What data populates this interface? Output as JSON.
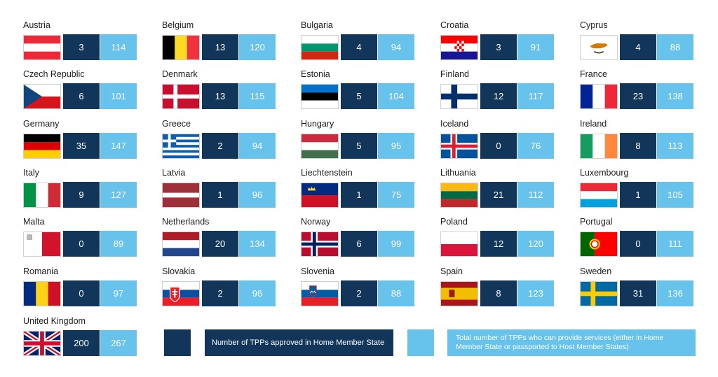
{
  "chart_data": {
    "type": "table",
    "series": [
      {
        "name": "Number of TPPs approved in Home Member State",
        "color": "#12365a"
      },
      {
        "name": "Total number of TPPs who can provide services (either in Home Member State or passported to Host Member States)",
        "color": "#67c2ec"
      }
    ],
    "countries": [
      {
        "name": "Austria",
        "flag": "austria-flag",
        "approved": "3",
        "total": "114"
      },
      {
        "name": "Belgium",
        "flag": "belgium-flag",
        "approved": "13",
        "total": "120"
      },
      {
        "name": "Bulgaria",
        "flag": "bulgaria-flag",
        "approved": "4",
        "total": "94"
      },
      {
        "name": "Croatia",
        "flag": "croatia-flag",
        "approved": "3",
        "total": "91"
      },
      {
        "name": "Cyprus",
        "flag": "cyprus-flag",
        "approved": "4",
        "total": "88"
      },
      {
        "name": "Czech Republic",
        "flag": "czech-republic-flag",
        "approved": "6",
        "total": "101"
      },
      {
        "name": "Denmark",
        "flag": "denmark-flag",
        "approved": "13",
        "total": "115"
      },
      {
        "name": "Estonia",
        "flag": "estonia-flag",
        "approved": "5",
        "total": "104"
      },
      {
        "name": "Finland",
        "flag": "finland-flag",
        "approved": "12",
        "total": "117"
      },
      {
        "name": "France",
        "flag": "france-flag",
        "approved": "23",
        "total": "138"
      },
      {
        "name": "Germany",
        "flag": "germany-flag",
        "approved": "35",
        "total": "147"
      },
      {
        "name": "Greece",
        "flag": "greece-flag",
        "approved": "2",
        "total": "94"
      },
      {
        "name": "Hungary",
        "flag": "hungary-flag",
        "approved": "5",
        "total": "95"
      },
      {
        "name": "Iceland",
        "flag": "iceland-flag",
        "approved": "0",
        "total": "76"
      },
      {
        "name": "Ireland",
        "flag": "ireland-flag",
        "approved": "8",
        "total": "113"
      },
      {
        "name": "Italy",
        "flag": "italy-flag",
        "approved": "9",
        "total": "127"
      },
      {
        "name": "Latvia",
        "flag": "latvia-flag",
        "approved": "1",
        "total": "96"
      },
      {
        "name": "Liechtenstein",
        "flag": "liechtenstein-flag",
        "approved": "1",
        "total": "75"
      },
      {
        "name": "Lithuania",
        "flag": "lithuania-flag",
        "approved": "21",
        "total": "112"
      },
      {
        "name": "Luxembourg",
        "flag": "luxembourg-flag",
        "approved": "1",
        "total": "105"
      },
      {
        "name": "Malta",
        "flag": "malta-flag",
        "approved": "0",
        "total": "89"
      },
      {
        "name": "Netherlands",
        "flag": "netherlands-flag",
        "approved": "20",
        "total": "134"
      },
      {
        "name": "Norway",
        "flag": "norway-flag",
        "approved": "6",
        "total": "99"
      },
      {
        "name": "Poland",
        "flag": "poland-flag",
        "approved": "12",
        "total": "120"
      },
      {
        "name": "Portugal",
        "flag": "portugal-flag",
        "approved": "0",
        "total": "111"
      },
      {
        "name": "Romania",
        "flag": "romania-flag",
        "approved": "0",
        "total": "97"
      },
      {
        "name": "Slovakia",
        "flag": "slovakia-flag",
        "approved": "2",
        "total": "96"
      },
      {
        "name": "Slovenia",
        "flag": "slovenia-flag",
        "approved": "2",
        "total": "88"
      },
      {
        "name": "Spain",
        "flag": "spain-flag",
        "approved": "8",
        "total": "123"
      },
      {
        "name": "Sweden",
        "flag": "sweden-flag",
        "approved": "31",
        "total": "136"
      },
      {
        "name": "United Kingdom",
        "flag": "united-kingdom-flag",
        "approved": "200",
        "total": "267"
      }
    ]
  },
  "legend": {
    "approved_label": "Number of TPPs approved in Home Member State",
    "total_label_line1": "Total number of TPPs who can provide services (either in Home",
    "total_label_line2": "Member State or passported to Host Member States)"
  }
}
